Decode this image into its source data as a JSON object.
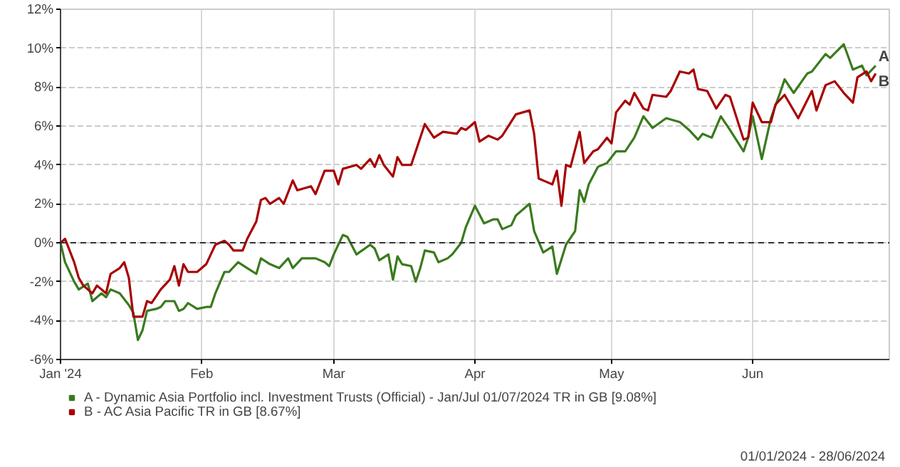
{
  "chart_data": {
    "type": "line",
    "xlim": [
      "2024-01-01",
      "2024-07-01"
    ],
    "xticks": [
      {
        "value": "2024-01-01",
        "label": "Jan '24"
      },
      {
        "value": "2024-02-01",
        "label": "Feb"
      },
      {
        "value": "2024-03-01",
        "label": "Mar"
      },
      {
        "value": "2024-04-01",
        "label": "Apr"
      },
      {
        "value": "2024-05-01",
        "label": "May"
      },
      {
        "value": "2024-06-01",
        "label": "Jun"
      }
    ],
    "ylim": [
      -6,
      12
    ],
    "yticks": [
      {
        "value": -6,
        "label": "-6%"
      },
      {
        "value": -4,
        "label": "-4%"
      },
      {
        "value": -2,
        "label": "-2%"
      },
      {
        "value": 0,
        "label": "0%"
      },
      {
        "value": 2,
        "label": "2%"
      },
      {
        "value": 4,
        "label": "4%"
      },
      {
        "value": 6,
        "label": "6%"
      },
      {
        "value": 8,
        "label": "8%"
      },
      {
        "value": 10,
        "label": "10%"
      },
      {
        "value": 12,
        "label": "12%"
      }
    ],
    "grid": true,
    "legend": "bottom left",
    "line_style": "solid",
    "ref_lines": [
      {
        "axis": "y",
        "value": 0,
        "label": null,
        "color": "#333333",
        "line_style": "dashed"
      }
    ],
    "series": [
      {
        "name": "A - Dynamic Asia Portfolio incl. Investment Trusts (Official) - Jan/Jul 01/07/2024 TR in GB [9.08%]",
        "color": "#3a7a1e",
        "x": [
          "2024-01-01",
          "2024-01-02",
          "2024-01-04",
          "2024-01-05",
          "2024-01-07",
          "2024-01-08",
          "2024-01-10",
          "2024-01-11",
          "2024-01-12",
          "2024-01-14",
          "2024-01-16",
          "2024-01-17",
          "2024-01-18",
          "2024-01-19",
          "2024-01-20",
          "2024-01-22",
          "2024-01-23",
          "2024-01-24",
          "2024-01-26",
          "2024-01-27",
          "2024-01-28",
          "2024-01-29",
          "2024-01-31",
          "2024-02-02",
          "2024-02-03",
          "2024-02-04",
          "2024-02-06",
          "2024-02-07",
          "2024-02-09",
          "2024-02-11",
          "2024-02-13",
          "2024-02-14",
          "2024-02-16",
          "2024-02-18",
          "2024-02-20",
          "2024-02-21",
          "2024-02-23",
          "2024-02-26",
          "2024-02-28",
          "2024-02-29",
          "2024-03-01",
          "2024-03-03",
          "2024-03-04",
          "2024-03-06",
          "2024-03-09",
          "2024-03-10",
          "2024-03-11",
          "2024-03-13",
          "2024-03-14",
          "2024-03-15",
          "2024-03-16",
          "2024-03-18",
          "2024-03-19",
          "2024-03-20",
          "2024-03-21",
          "2024-03-23",
          "2024-03-24",
          "2024-03-26",
          "2024-03-27",
          "2024-03-29",
          "2024-03-30",
          "2024-04-01",
          "2024-04-03",
          "2024-04-05",
          "2024-04-06",
          "2024-04-07",
          "2024-04-09",
          "2024-04-10",
          "2024-04-13",
          "2024-04-14",
          "2024-04-16",
          "2024-04-18",
          "2024-04-19",
          "2024-04-21",
          "2024-04-23",
          "2024-04-24",
          "2024-04-25",
          "2024-04-26",
          "2024-04-28",
          "2024-04-30",
          "2024-05-02",
          "2024-05-04",
          "2024-05-06",
          "2024-05-08",
          "2024-05-10",
          "2024-05-13",
          "2024-05-16",
          "2024-05-18",
          "2024-05-20",
          "2024-05-21",
          "2024-05-23",
          "2024-05-25",
          "2024-05-27",
          "2024-05-30",
          "2024-05-31",
          "2024-06-01",
          "2024-06-03",
          "2024-06-05",
          "2024-06-07",
          "2024-06-08",
          "2024-06-10",
          "2024-06-13",
          "2024-06-14",
          "2024-06-17",
          "2024-06-18",
          "2024-06-21",
          "2024-06-23",
          "2024-06-25",
          "2024-06-26",
          "2024-06-28"
        ],
        "values": [
          0,
          -1.0,
          -2.0,
          -2.4,
          -2.1,
          -3.0,
          -2.6,
          -2.8,
          -2.4,
          -2.6,
          -3.2,
          -3.6,
          -5.0,
          -4.5,
          -3.5,
          -3.4,
          -3.3,
          -3.0,
          -3.0,
          -3.5,
          -3.4,
          -3.1,
          -3.4,
          -3.3,
          -3.3,
          -2.6,
          -1.5,
          -1.5,
          -1.0,
          -1.3,
          -1.6,
          -0.8,
          -1.1,
          -1.3,
          -0.8,
          -1.3,
          -0.8,
          -0.8,
          -1.0,
          -1.2,
          -0.6,
          0.4,
          0.3,
          -0.6,
          -0.1,
          -0.3,
          -0.9,
          -0.6,
          -1.9,
          -0.7,
          -1.1,
          -1.2,
          -2.0,
          -1.3,
          -0.4,
          -0.5,
          -1.0,
          -0.8,
          -0.6,
          0.0,
          0.8,
          1.9,
          1.0,
          1.2,
          1.2,
          0.7,
          0.9,
          1.4,
          2.0,
          0.6,
          -0.5,
          -0.2,
          -1.6,
          -0.1,
          0.6,
          2.7,
          2.1,
          3.0,
          3.9,
          4.1,
          4.7,
          4.7,
          5.4,
          6.5,
          5.9,
          6.4,
          6.2,
          5.8,
          5.3,
          5.6,
          5.4,
          6.5,
          5.8,
          4.7,
          5.4,
          6.5,
          4.3,
          6.4,
          7.7,
          8.4,
          7.7,
          8.7,
          8.8,
          9.7,
          9.5,
          10.2,
          8.9,
          9.1,
          8.6,
          9.1
        ]
      },
      {
        "name": "B - AC Asia Pacific TR in GB [8.67%]",
        "color": "#a80000",
        "x": [
          "2024-01-01",
          "2024-01-02",
          "2024-01-04",
          "2024-01-05",
          "2024-01-06",
          "2024-01-08",
          "2024-01-09",
          "2024-01-11",
          "2024-01-12",
          "2024-01-14",
          "2024-01-15",
          "2024-01-16",
          "2024-01-17",
          "2024-01-19",
          "2024-01-20",
          "2024-01-21",
          "2024-01-23",
          "2024-01-25",
          "2024-01-26",
          "2024-01-27",
          "2024-01-28",
          "2024-01-29",
          "2024-01-31",
          "2024-02-02",
          "2024-02-03",
          "2024-02-04",
          "2024-02-06",
          "2024-02-07",
          "2024-02-08",
          "2024-02-10",
          "2024-02-11",
          "2024-02-13",
          "2024-02-14",
          "2024-02-15",
          "2024-02-16",
          "2024-02-18",
          "2024-02-19",
          "2024-02-21",
          "2024-02-22",
          "2024-02-25",
          "2024-02-26",
          "2024-02-28",
          "2024-03-01",
          "2024-03-02",
          "2024-03-03",
          "2024-03-06",
          "2024-03-07",
          "2024-03-09",
          "2024-03-10",
          "2024-03-11",
          "2024-03-12",
          "2024-03-14",
          "2024-03-15",
          "2024-03-16",
          "2024-03-18",
          "2024-03-21",
          "2024-03-23",
          "2024-03-25",
          "2024-03-28",
          "2024-03-29",
          "2024-03-30",
          "2024-04-01",
          "2024-04-02",
          "2024-04-04",
          "2024-04-06",
          "2024-04-07",
          "2024-04-10",
          "2024-04-13",
          "2024-04-14",
          "2024-04-15",
          "2024-04-18",
          "2024-04-19",
          "2024-04-20",
          "2024-04-21",
          "2024-04-22",
          "2024-04-24",
          "2024-04-25",
          "2024-04-27",
          "2024-04-28",
          "2024-04-30",
          "2024-05-01",
          "2024-05-02",
          "2024-05-04",
          "2024-05-05",
          "2024-05-06",
          "2024-05-08",
          "2024-05-09",
          "2024-05-10",
          "2024-05-13",
          "2024-05-14",
          "2024-05-16",
          "2024-05-18",
          "2024-05-19",
          "2024-05-20",
          "2024-05-22",
          "2024-05-24",
          "2024-05-26",
          "2024-05-27",
          "2024-05-30",
          "2024-05-31",
          "2024-06-01",
          "2024-06-03",
          "2024-06-05",
          "2024-06-06",
          "2024-06-08",
          "2024-06-11",
          "2024-06-14",
          "2024-06-15",
          "2024-06-17",
          "2024-06-19",
          "2024-06-21",
          "2024-06-23",
          "2024-06-24",
          "2024-06-26",
          "2024-06-27",
          "2024-06-28"
        ],
        "values": [
          0,
          0.2,
          -1.0,
          -1.8,
          -2.2,
          -2.6,
          -2.2,
          -2.6,
          -1.6,
          -1.3,
          -1.0,
          -1.8,
          -3.8,
          -3.8,
          -3.0,
          -3.1,
          -2.4,
          -1.9,
          -1.2,
          -2.2,
          -1.1,
          -1.5,
          -1.5,
          -1.1,
          -0.6,
          -0.1,
          0.1,
          -0.1,
          -0.4,
          -0.4,
          0.2,
          1.1,
          2.2,
          2.3,
          2.0,
          2.3,
          2.0,
          3.2,
          2.7,
          2.9,
          2.5,
          3.7,
          3.7,
          3.0,
          3.8,
          4.0,
          3.8,
          4.3,
          3.9,
          4.5,
          4.0,
          3.4,
          4.4,
          4.0,
          4.0,
          6.1,
          5.4,
          5.7,
          5.6,
          5.9,
          5.8,
          6.2,
          5.2,
          5.5,
          5.3,
          5.5,
          6.6,
          6.8,
          5.6,
          3.3,
          3.0,
          3.7,
          1.9,
          4.0,
          3.9,
          5.7,
          4.1,
          4.7,
          4.8,
          5.4,
          5.1,
          6.7,
          7.3,
          7.1,
          7.7,
          6.9,
          6.8,
          7.6,
          7.5,
          7.8,
          8.8,
          8.7,
          8.9,
          7.9,
          7.8,
          6.9,
          7.6,
          7.5,
          5.3,
          5.4,
          7.2,
          6.2,
          6.2,
          7.1,
          7.6,
          6.4,
          7.8,
          6.8,
          8.1,
          8.3,
          7.7,
          7.2,
          8.5,
          8.8,
          8.3,
          8.7
        ]
      }
    ],
    "annotations": [
      {
        "text": "A",
        "x": "2024-06-28",
        "y": 9.1
      },
      {
        "text": "B",
        "x": "2024-06-28",
        "y": 8.7
      },
      "01/01/2024 - 28/06/2024"
    ]
  }
}
